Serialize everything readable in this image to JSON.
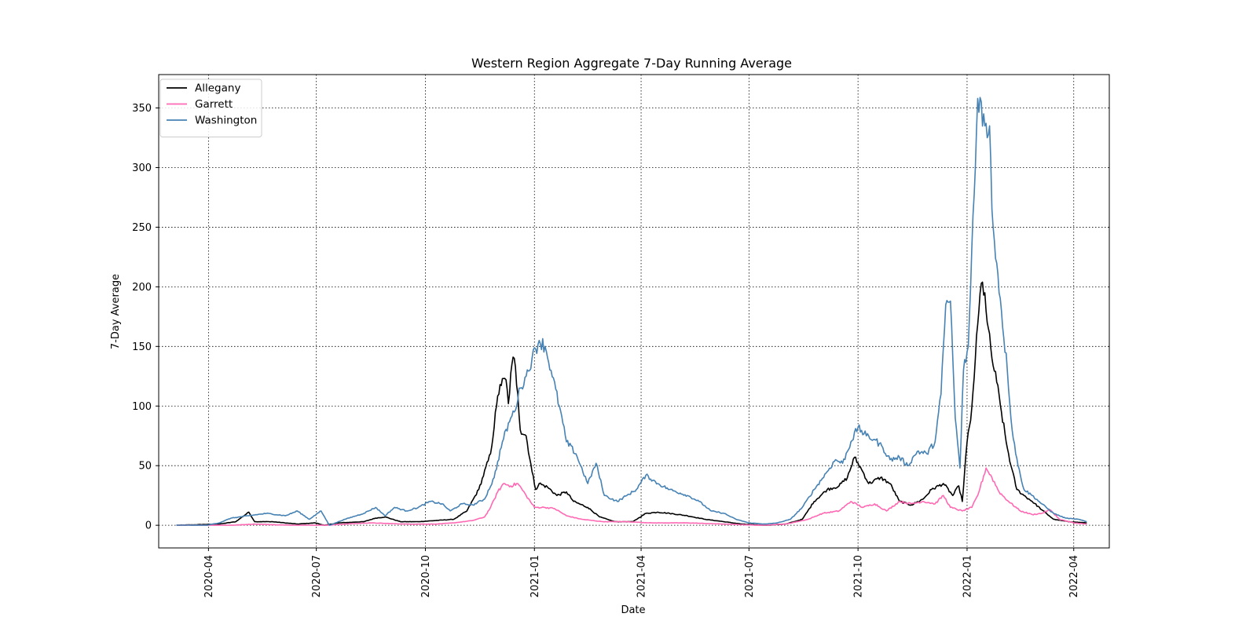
{
  "chart_data": {
    "type": "line",
    "title": "Western Region Aggregate 7-Day Running Average",
    "xlabel": "Date",
    "ylabel": "7-Day Average",
    "xlim": [
      "2020-02-19",
      "2022-05-01"
    ],
    "ylim": [
      -19,
      378
    ],
    "x_ticks": [
      "2020-04",
      "2020-07",
      "2020-10",
      "2021-01",
      "2021-04",
      "2021-07",
      "2021-10",
      "2022-01",
      "2022-04"
    ],
    "y_ticks": [
      0,
      50,
      100,
      150,
      200,
      250,
      300,
      350
    ],
    "grid": true,
    "legend_position": "upper-left",
    "series": [
      {
        "name": "Allegany",
        "color": "#000000",
        "points": [
          [
            "2020-03-05",
            0
          ],
          [
            "2020-04-10",
            1
          ],
          [
            "2020-04-24",
            3
          ],
          [
            "2020-05-05",
            11
          ],
          [
            "2020-05-10",
            3
          ],
          [
            "2020-05-25",
            3
          ],
          [
            "2020-06-15",
            1
          ],
          [
            "2020-06-30",
            2
          ],
          [
            "2020-07-08",
            0
          ],
          [
            "2020-07-20",
            2
          ],
          [
            "2020-08-10",
            3
          ],
          [
            "2020-08-20",
            6
          ],
          [
            "2020-08-28",
            7
          ],
          [
            "2020-09-10",
            3
          ],
          [
            "2020-09-25",
            3
          ],
          [
            "2020-10-10",
            4
          ],
          [
            "2020-10-25",
            5
          ],
          [
            "2020-11-05",
            12
          ],
          [
            "2020-11-15",
            30
          ],
          [
            "2020-11-25",
            60
          ],
          [
            "2020-11-30",
            100
          ],
          [
            "2020-12-03",
            118
          ],
          [
            "2020-12-08",
            122
          ],
          [
            "2020-12-10",
            102
          ],
          [
            "2020-12-13",
            135
          ],
          [
            "2020-12-15",
            140
          ],
          [
            "2020-12-18",
            110
          ],
          [
            "2020-12-20",
            80
          ],
          [
            "2020-12-25",
            75
          ],
          [
            "2020-12-30",
            45
          ],
          [
            "2021-01-02",
            30
          ],
          [
            "2021-01-05",
            35
          ],
          [
            "2021-01-12",
            32
          ],
          [
            "2021-01-20",
            25
          ],
          [
            "2021-01-28",
            28
          ],
          [
            "2021-02-03",
            20
          ],
          [
            "2021-02-15",
            15
          ],
          [
            "2021-02-25",
            7
          ],
          [
            "2021-03-10",
            3
          ],
          [
            "2021-03-25",
            3
          ],
          [
            "2021-04-05",
            10
          ],
          [
            "2021-04-15",
            11
          ],
          [
            "2021-04-25",
            10
          ],
          [
            "2021-05-10",
            8
          ],
          [
            "2021-05-25",
            5
          ],
          [
            "2021-06-10",
            3
          ],
          [
            "2021-06-25",
            1
          ],
          [
            "2021-07-15",
            0
          ],
          [
            "2021-08-01",
            1
          ],
          [
            "2021-08-15",
            5
          ],
          [
            "2021-08-25",
            20
          ],
          [
            "2021-09-05",
            30
          ],
          [
            "2021-09-15",
            33
          ],
          [
            "2021-09-22",
            40
          ],
          [
            "2021-09-28",
            57
          ],
          [
            "2021-10-05",
            45
          ],
          [
            "2021-10-10",
            35
          ],
          [
            "2021-10-20",
            40
          ],
          [
            "2021-10-28",
            35
          ],
          [
            "2021-11-05",
            20
          ],
          [
            "2021-11-15",
            17
          ],
          [
            "2021-11-25",
            22
          ],
          [
            "2021-12-02",
            30
          ],
          [
            "2021-12-12",
            35
          ],
          [
            "2021-12-20",
            25
          ],
          [
            "2021-12-25",
            33
          ],
          [
            "2021-12-28",
            20
          ],
          [
            "2022-01-01",
            70
          ],
          [
            "2022-01-04",
            88
          ],
          [
            "2022-01-06",
            112
          ],
          [
            "2022-01-08",
            140
          ],
          [
            "2022-01-11",
            180
          ],
          [
            "2022-01-13",
            203
          ],
          [
            "2022-01-16",
            195
          ],
          [
            "2022-01-18",
            170
          ],
          [
            "2022-01-22",
            140
          ],
          [
            "2022-01-26",
            120
          ],
          [
            "2022-01-30",
            95
          ],
          [
            "2022-02-03",
            70
          ],
          [
            "2022-02-07",
            50
          ],
          [
            "2022-02-12",
            30
          ],
          [
            "2022-02-18",
            25
          ],
          [
            "2022-02-25",
            20
          ],
          [
            "2022-03-05",
            13
          ],
          [
            "2022-03-15",
            5
          ],
          [
            "2022-03-28",
            3
          ],
          [
            "2022-04-12",
            2
          ]
        ]
      },
      {
        "name": "Garrett",
        "color": "#ff69b4",
        "points": [
          [
            "2020-03-05",
            0
          ],
          [
            "2020-04-20",
            0
          ],
          [
            "2020-05-10",
            1
          ],
          [
            "2020-06-10",
            0
          ],
          [
            "2020-07-10",
            0
          ],
          [
            "2020-07-25",
            1
          ],
          [
            "2020-08-15",
            2
          ],
          [
            "2020-09-15",
            1
          ],
          [
            "2020-10-10",
            1
          ],
          [
            "2020-10-25",
            2
          ],
          [
            "2020-11-10",
            4
          ],
          [
            "2020-11-20",
            7
          ],
          [
            "2020-11-25",
            15
          ],
          [
            "2020-12-01",
            28
          ],
          [
            "2020-12-06",
            35
          ],
          [
            "2020-12-12",
            33
          ],
          [
            "2020-12-18",
            35
          ],
          [
            "2020-12-25",
            25
          ],
          [
            "2021-01-01",
            15
          ],
          [
            "2021-01-10",
            15
          ],
          [
            "2021-01-18",
            14
          ],
          [
            "2021-01-28",
            8
          ],
          [
            "2021-02-10",
            5
          ],
          [
            "2021-02-28",
            3
          ],
          [
            "2021-03-20",
            3
          ],
          [
            "2021-04-10",
            2
          ],
          [
            "2021-05-10",
            2
          ],
          [
            "2021-06-10",
            1
          ],
          [
            "2021-07-10",
            0
          ],
          [
            "2021-08-01",
            1
          ],
          [
            "2021-08-20",
            5
          ],
          [
            "2021-09-01",
            10
          ],
          [
            "2021-09-15",
            12
          ],
          [
            "2021-09-25",
            20
          ],
          [
            "2021-10-05",
            15
          ],
          [
            "2021-10-15",
            18
          ],
          [
            "2021-10-25",
            12
          ],
          [
            "2021-11-05",
            20
          ],
          [
            "2021-11-15",
            18
          ],
          [
            "2021-11-25",
            20
          ],
          [
            "2021-12-05",
            18
          ],
          [
            "2021-12-12",
            25
          ],
          [
            "2021-12-18",
            15
          ],
          [
            "2021-12-28",
            12
          ],
          [
            "2022-01-05",
            15
          ],
          [
            "2022-01-10",
            25
          ],
          [
            "2022-01-17",
            48
          ],
          [
            "2022-01-22",
            40
          ],
          [
            "2022-01-28",
            28
          ],
          [
            "2022-02-05",
            20
          ],
          [
            "2022-02-15",
            12
          ],
          [
            "2022-02-25",
            9
          ],
          [
            "2022-03-05",
            10
          ],
          [
            "2022-03-12",
            13
          ],
          [
            "2022-03-20",
            5
          ],
          [
            "2022-04-01",
            2
          ],
          [
            "2022-04-12",
            1
          ]
        ]
      },
      {
        "name": "Washington",
        "color": "#4682b4",
        "points": [
          [
            "2020-03-05",
            0
          ],
          [
            "2020-03-30",
            0
          ],
          [
            "2020-04-10",
            2
          ],
          [
            "2020-04-20",
            6
          ],
          [
            "2020-05-05",
            8
          ],
          [
            "2020-05-20",
            10
          ],
          [
            "2020-06-05",
            8
          ],
          [
            "2020-06-15",
            12
          ],
          [
            "2020-06-25",
            5
          ],
          [
            "2020-07-05",
            12
          ],
          [
            "2020-07-12",
            0
          ],
          [
            "2020-07-25",
            5
          ],
          [
            "2020-08-10",
            10
          ],
          [
            "2020-08-20",
            15
          ],
          [
            "2020-08-28",
            8
          ],
          [
            "2020-09-05",
            15
          ],
          [
            "2020-09-15",
            12
          ],
          [
            "2020-09-25",
            15
          ],
          [
            "2020-10-05",
            20
          ],
          [
            "2020-10-15",
            18
          ],
          [
            "2020-10-22",
            12
          ],
          [
            "2020-11-01",
            18
          ],
          [
            "2020-11-10",
            17
          ],
          [
            "2020-11-20",
            22
          ],
          [
            "2020-11-28",
            40
          ],
          [
            "2020-12-05",
            70
          ],
          [
            "2020-12-12",
            90
          ],
          [
            "2020-12-15",
            95
          ],
          [
            "2020-12-20",
            115
          ],
          [
            "2020-12-25",
            125
          ],
          [
            "2020-12-30",
            140
          ],
          [
            "2021-01-05",
            155
          ],
          [
            "2021-01-10",
            150
          ],
          [
            "2021-01-15",
            130
          ],
          [
            "2021-01-22",
            100
          ],
          [
            "2021-01-28",
            70
          ],
          [
            "2021-02-05",
            60
          ],
          [
            "2021-02-15",
            35
          ],
          [
            "2021-02-22",
            52
          ],
          [
            "2021-03-01",
            25
          ],
          [
            "2021-03-12",
            20
          ],
          [
            "2021-03-20",
            25
          ],
          [
            "2021-03-28",
            30
          ],
          [
            "2021-04-05",
            42
          ],
          [
            "2021-04-15",
            35
          ],
          [
            "2021-04-25",
            30
          ],
          [
            "2021-05-10",
            25
          ],
          [
            "2021-05-20",
            20
          ],
          [
            "2021-05-30",
            12
          ],
          [
            "2021-06-10",
            10
          ],
          [
            "2021-06-20",
            5
          ],
          [
            "2021-07-01",
            2
          ],
          [
            "2021-07-15",
            1
          ],
          [
            "2021-07-25",
            2
          ],
          [
            "2021-08-05",
            5
          ],
          [
            "2021-08-15",
            15
          ],
          [
            "2021-08-25",
            30
          ],
          [
            "2021-09-05",
            45
          ],
          [
            "2021-09-12",
            55
          ],
          [
            "2021-09-18",
            52
          ],
          [
            "2021-09-25",
            70
          ],
          [
            "2021-10-01",
            82
          ],
          [
            "2021-10-08",
            75
          ],
          [
            "2021-10-15",
            72
          ],
          [
            "2021-10-22",
            65
          ],
          [
            "2021-10-28",
            55
          ],
          [
            "2021-11-05",
            57
          ],
          [
            "2021-11-12",
            50
          ],
          [
            "2021-11-20",
            62
          ],
          [
            "2021-11-28",
            60
          ],
          [
            "2021-12-05",
            70
          ],
          [
            "2021-12-10",
            110
          ],
          [
            "2021-12-14",
            185
          ],
          [
            "2021-12-18",
            188
          ],
          [
            "2021-12-20",
            140
          ],
          [
            "2021-12-22",
            90
          ],
          [
            "2021-12-26",
            48
          ],
          [
            "2021-12-29",
            130
          ],
          [
            "2022-01-02",
            150
          ],
          [
            "2022-01-04",
            200
          ],
          [
            "2022-01-06",
            260
          ],
          [
            "2022-01-08",
            300
          ],
          [
            "2022-01-10",
            358
          ],
          [
            "2022-01-13",
            355
          ],
          [
            "2022-01-16",
            335
          ],
          [
            "2022-01-18",
            325
          ],
          [
            "2022-01-20",
            335
          ],
          [
            "2022-01-22",
            265
          ],
          [
            "2022-01-26",
            220
          ],
          [
            "2022-01-30",
            180
          ],
          [
            "2022-02-04",
            130
          ],
          [
            "2022-02-08",
            80
          ],
          [
            "2022-02-13",
            50
          ],
          [
            "2022-02-18",
            30
          ],
          [
            "2022-02-25",
            25
          ],
          [
            "2022-03-05",
            18
          ],
          [
            "2022-03-15",
            10
          ],
          [
            "2022-03-25",
            6
          ],
          [
            "2022-04-05",
            5
          ],
          [
            "2022-04-12",
            3
          ]
        ]
      }
    ]
  }
}
